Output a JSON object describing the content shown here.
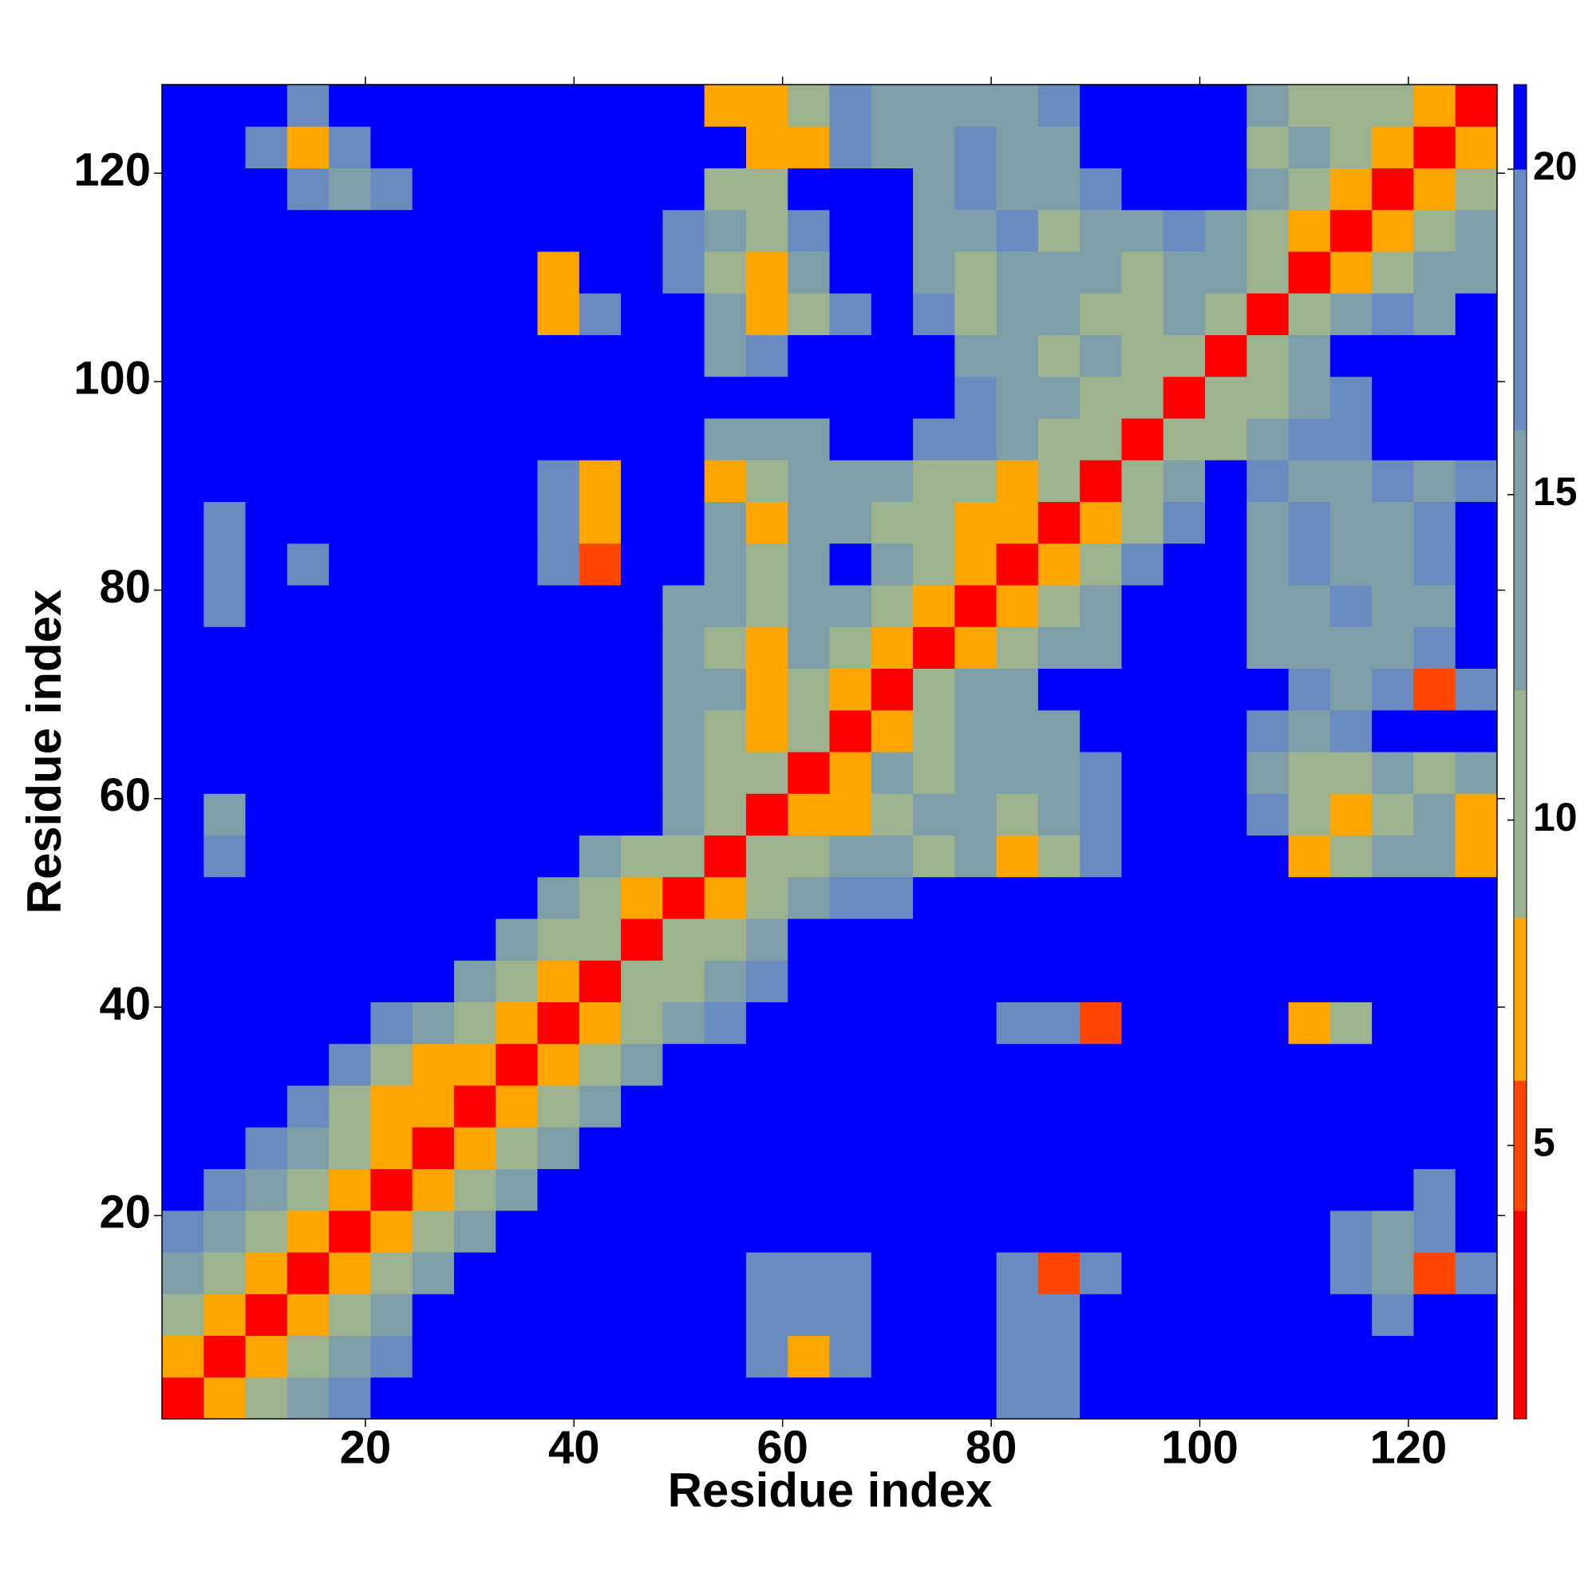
{
  "chart_data": {
    "type": "heatmap",
    "xlabel": "Residue index",
    "ylabel": "Residue index",
    "xlim": [
      0.5,
      128.5
    ],
    "ylim": [
      0.5,
      128.5
    ],
    "xticks": [
      20,
      40,
      60,
      80,
      100,
      120
    ],
    "yticks": [
      20,
      40,
      60,
      80,
      100,
      120
    ],
    "xbins": [
      0.5,
      4.5,
      8.5,
      12.5,
      16.5,
      20.5,
      24.5,
      28.5,
      32.5,
      36.5,
      40.5,
      44.5,
      48.5,
      52.5,
      56.5,
      60.5,
      64.5,
      68.5,
      72.5,
      76.5,
      80.5,
      84.5,
      88.5,
      92.5,
      96.5,
      100.5,
      104.5,
      108.5,
      112.5,
      116.5,
      120.5,
      124.5,
      128.5
    ],
    "ybins": [
      0.5,
      4.5,
      8.5,
      12.5,
      16.5,
      20.5,
      24.5,
      28.5,
      32.5,
      36.5,
      40.5,
      44.5,
      48.5,
      52.5,
      56.5,
      60.5,
      64.5,
      68.5,
      72.5,
      76.5,
      80.5,
      84.5,
      88.5,
      92.5,
      96.5,
      100.5,
      104.5,
      108.5,
      112.5,
      116.5,
      120.5,
      124.5,
      128.5
    ],
    "colorbar": {
      "bounds": [
        0.8,
        4,
        6,
        8.5,
        12,
        16,
        20,
        21.3
      ],
      "colors": [
        "#ff0000",
        "#ff4500",
        "#ffa500",
        "#9db28e",
        "#7f9fa8",
        "#6a8bbf",
        "#0000ff"
      ],
      "ticks": [
        5,
        10,
        15,
        20
      ]
    },
    "z": [
      [
        2,
        7,
        10,
        14,
        18,
        21,
        21,
        21,
        21,
        21,
        21,
        21,
        21,
        21,
        21,
        21,
        21,
        21,
        21,
        21,
        18,
        18,
        21,
        21,
        21,
        21,
        21,
        21,
        21,
        21,
        21,
        21
      ],
      [
        7,
        2,
        7,
        10,
        14,
        18,
        21,
        21,
        21,
        21,
        21,
        21,
        21,
        21,
        18,
        7,
        18,
        21,
        21,
        21,
        18,
        18,
        21,
        21,
        21,
        21,
        21,
        21,
        21,
        21,
        21,
        21
      ],
      [
        10,
        7,
        2,
        7,
        10,
        14,
        21,
        21,
        21,
        21,
        21,
        21,
        21,
        21,
        18,
        18,
        18,
        21,
        21,
        21,
        18,
        18,
        21,
        21,
        21,
        21,
        21,
        21,
        21,
        18,
        21,
        21
      ],
      [
        14,
        10,
        7,
        2,
        7,
        10,
        14,
        21,
        21,
        21,
        21,
        21,
        21,
        21,
        18,
        18,
        18,
        21,
        21,
        21,
        18,
        5,
        18,
        21,
        21,
        21,
        21,
        21,
        18,
        14,
        5,
        18
      ],
      [
        18,
        14,
        10,
        7,
        2,
        7,
        10,
        14,
        21,
        21,
        21,
        21,
        21,
        21,
        21,
        21,
        21,
        21,
        21,
        21,
        21,
        21,
        21,
        21,
        21,
        21,
        21,
        21,
        18,
        14,
        18,
        21
      ],
      [
        21,
        18,
        14,
        10,
        7,
        2,
        7,
        10,
        14,
        21,
        21,
        21,
        21,
        21,
        21,
        21,
        21,
        21,
        21,
        21,
        21,
        21,
        21,
        21,
        21,
        21,
        21,
        21,
        21,
        21,
        18,
        21
      ],
      [
        21,
        21,
        18,
        14,
        10,
        7,
        2,
        7,
        10,
        14,
        21,
        21,
        21,
        21,
        21,
        21,
        21,
        21,
        21,
        21,
        21,
        21,
        21,
        21,
        21,
        21,
        21,
        21,
        21,
        21,
        21,
        21
      ],
      [
        21,
        21,
        21,
        18,
        10,
        7,
        7,
        2,
        7,
        10,
        14,
        21,
        21,
        21,
        21,
        21,
        21,
        21,
        21,
        21,
        21,
        21,
        21,
        21,
        21,
        21,
        21,
        21,
        21,
        21,
        21,
        21
      ],
      [
        21,
        21,
        21,
        21,
        18,
        10,
        7,
        7,
        2,
        7,
        10,
        14,
        21,
        21,
        21,
        21,
        21,
        21,
        21,
        21,
        21,
        21,
        21,
        21,
        21,
        21,
        21,
        21,
        21,
        21,
        21,
        21
      ],
      [
        21,
        21,
        21,
        21,
        21,
        18,
        14,
        10,
        7,
        2,
        7,
        10,
        14,
        18,
        21,
        21,
        21,
        21,
        21,
        21,
        18,
        18,
        5,
        21,
        21,
        21,
        21,
        7,
        10,
        21,
        21,
        21
      ],
      [
        21,
        21,
        21,
        21,
        21,
        21,
        21,
        14,
        10,
        7,
        2,
        10,
        10,
        14,
        18,
        21,
        21,
        21,
        21,
        21,
        21,
        21,
        21,
        21,
        21,
        21,
        21,
        21,
        21,
        21,
        21,
        21
      ],
      [
        21,
        21,
        21,
        21,
        21,
        21,
        21,
        21,
        14,
        10,
        10,
        2,
        10,
        10,
        14,
        21,
        21,
        21,
        21,
        21,
        21,
        21,
        21,
        21,
        21,
        21,
        21,
        21,
        21,
        21,
        21,
        21
      ],
      [
        21,
        21,
        21,
        21,
        21,
        21,
        21,
        21,
        21,
        14,
        10,
        7,
        2,
        7,
        10,
        14,
        18,
        18,
        21,
        21,
        21,
        21,
        21,
        21,
        21,
        21,
        21,
        21,
        21,
        21,
        21,
        21
      ],
      [
        21,
        18,
        21,
        21,
        21,
        21,
        21,
        21,
        21,
        21,
        14,
        10,
        10,
        2,
        10,
        10,
        14,
        14,
        10,
        14,
        7,
        10,
        18,
        21,
        21,
        21,
        21,
        7,
        10,
        14,
        14,
        7
      ],
      [
        21,
        14,
        21,
        21,
        21,
        21,
        21,
        21,
        21,
        21,
        21,
        21,
        14,
        10,
        2,
        7,
        7,
        10,
        14,
        14,
        10,
        14,
        18,
        21,
        21,
        21,
        18,
        10,
        7,
        10,
        14,
        7
      ],
      [
        21,
        21,
        21,
        21,
        21,
        21,
        21,
        21,
        21,
        21,
        21,
        21,
        14,
        10,
        10,
        2,
        7,
        14,
        10,
        14,
        14,
        14,
        18,
        21,
        21,
        21,
        14,
        10,
        10,
        14,
        10,
        14
      ],
      [
        21,
        21,
        21,
        21,
        21,
        21,
        21,
        21,
        21,
        21,
        21,
        21,
        14,
        10,
        7,
        10,
        2,
        7,
        10,
        14,
        14,
        14,
        21,
        21,
        21,
        21,
        18,
        14,
        18,
        21,
        21,
        21
      ],
      [
        21,
        21,
        21,
        21,
        21,
        21,
        21,
        21,
        21,
        21,
        21,
        21,
        14,
        14,
        7,
        10,
        7,
        2,
        10,
        14,
        14,
        21,
        21,
        21,
        21,
        21,
        21,
        18,
        14,
        18,
        5,
        18
      ],
      [
        21,
        21,
        21,
        21,
        21,
        21,
        21,
        21,
        21,
        21,
        21,
        21,
        14,
        10,
        7,
        14,
        10,
        7,
        2,
        7,
        10,
        14,
        14,
        21,
        21,
        21,
        14,
        14,
        14,
        14,
        18,
        21
      ],
      [
        21,
        18,
        21,
        21,
        21,
        21,
        21,
        21,
        21,
        21,
        21,
        21,
        14,
        14,
        10,
        14,
        14,
        10,
        7,
        2,
        7,
        10,
        14,
        21,
        21,
        21,
        14,
        14,
        18,
        14,
        14,
        21
      ],
      [
        21,
        18,
        21,
        18,
        21,
        21,
        21,
        21,
        21,
        18,
        5,
        21,
        21,
        14,
        10,
        14,
        21,
        14,
        10,
        7,
        2,
        7,
        10,
        18,
        21,
        21,
        14,
        18,
        14,
        14,
        18,
        21
      ],
      [
        21,
        18,
        21,
        21,
        21,
        21,
        21,
        21,
        21,
        18,
        7,
        21,
        21,
        14,
        7,
        14,
        14,
        10,
        10,
        7,
        7,
        2,
        7,
        10,
        18,
        21,
        14,
        18,
        14,
        14,
        18,
        21
      ],
      [
        21,
        21,
        21,
        21,
        21,
        21,
        21,
        21,
        21,
        18,
        7,
        21,
        21,
        7,
        10,
        14,
        14,
        14,
        10,
        10,
        7,
        10,
        2,
        10,
        14,
        21,
        18,
        14,
        14,
        18,
        14,
        18
      ],
      [
        21,
        21,
        21,
        21,
        21,
        21,
        21,
        21,
        21,
        21,
        21,
        21,
        21,
        14,
        14,
        14,
        21,
        21,
        18,
        18,
        14,
        10,
        10,
        2,
        10,
        10,
        14,
        18,
        18,
        21,
        21,
        21
      ],
      [
        21,
        21,
        21,
        21,
        21,
        21,
        21,
        21,
        21,
        21,
        21,
        21,
        21,
        21,
        21,
        21,
        21,
        21,
        21,
        18,
        14,
        14,
        10,
        10,
        2,
        10,
        10,
        14,
        18,
        21,
        21,
        21
      ],
      [
        21,
        21,
        21,
        21,
        21,
        21,
        21,
        21,
        21,
        21,
        21,
        21,
        21,
        14,
        18,
        21,
        21,
        21,
        21,
        14,
        14,
        10,
        14,
        10,
        10,
        2,
        10,
        14,
        21,
        21,
        21,
        21
      ],
      [
        21,
        21,
        21,
        21,
        21,
        21,
        21,
        21,
        21,
        7,
        18,
        21,
        21,
        14,
        7,
        10,
        18,
        21,
        18,
        10,
        14,
        14,
        10,
        10,
        14,
        10,
        2,
        10,
        14,
        18,
        14,
        21
      ],
      [
        21,
        21,
        21,
        21,
        21,
        21,
        21,
        21,
        21,
        7,
        21,
        21,
        18,
        10,
        7,
        14,
        21,
        21,
        14,
        10,
        14,
        14,
        14,
        10,
        14,
        14,
        10,
        2,
        7,
        10,
        14,
        14
      ],
      [
        21,
        21,
        21,
        21,
        21,
        21,
        21,
        21,
        21,
        21,
        21,
        21,
        18,
        14,
        10,
        18,
        21,
        21,
        14,
        14,
        18,
        10,
        14,
        14,
        18,
        14,
        10,
        7,
        2,
        7,
        10,
        14
      ],
      [
        21,
        21,
        21,
        18,
        14,
        18,
        21,
        21,
        21,
        21,
        21,
        21,
        21,
        10,
        10,
        21,
        21,
        21,
        14,
        18,
        14,
        14,
        18,
        21,
        21,
        21,
        14,
        10,
        7,
        2,
        7,
        10
      ],
      [
        21,
        21,
        18,
        7,
        18,
        21,
        21,
        21,
        21,
        21,
        21,
        21,
        21,
        21,
        7,
        7,
        18,
        14,
        14,
        18,
        14,
        14,
        21,
        21,
        21,
        21,
        10,
        14,
        10,
        7,
        2,
        7
      ],
      [
        21,
        21,
        21,
        18,
        21,
        21,
        21,
        21,
        21,
        21,
        21,
        21,
        21,
        7,
        7,
        10,
        18,
        14,
        14,
        14,
        14,
        18,
        21,
        21,
        21,
        21,
        14,
        10,
        10,
        10,
        7,
        2
      ]
    ]
  }
}
